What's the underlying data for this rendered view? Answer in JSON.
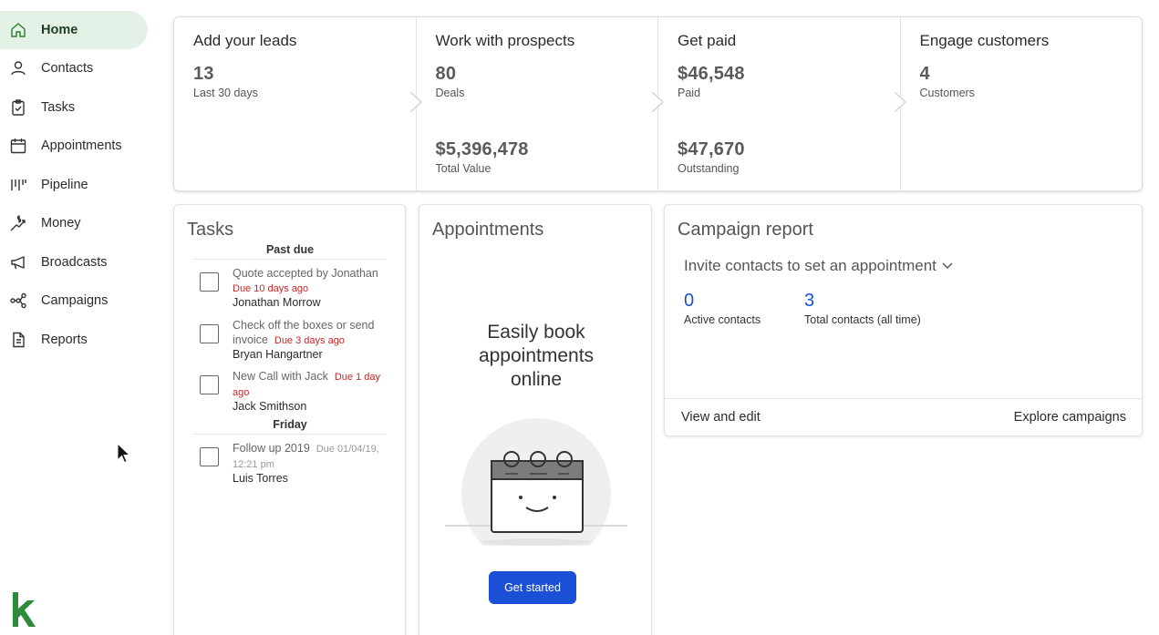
{
  "sidebar": {
    "items": [
      {
        "label": "Home",
        "icon": "home-icon",
        "active": true
      },
      {
        "label": "Contacts",
        "icon": "person-icon"
      },
      {
        "label": "Tasks",
        "icon": "clipboard-check-icon"
      },
      {
        "label": "Appointments",
        "icon": "calendar-icon"
      },
      {
        "label": "Pipeline",
        "icon": "pipeline-icon"
      },
      {
        "label": "Money",
        "icon": "money-icon"
      },
      {
        "label": "Broadcasts",
        "icon": "megaphone-icon"
      },
      {
        "label": "Campaigns",
        "icon": "campaigns-icon"
      },
      {
        "label": "Reports",
        "icon": "report-icon"
      }
    ],
    "brand_color": "#2e8b3a"
  },
  "funnel": {
    "stages": [
      {
        "title": "Add your leads",
        "stats": [
          {
            "value": "13",
            "label": "Last 30 days"
          }
        ]
      },
      {
        "title": "Work with prospects",
        "stats": [
          {
            "value": "80",
            "label": "Deals"
          },
          {
            "value": "$5,396,478",
            "label": "Total Value"
          }
        ]
      },
      {
        "title": "Get paid",
        "stats": [
          {
            "value": "$46,548",
            "label": "Paid"
          },
          {
            "value": "$47,670",
            "label": "Outstanding"
          }
        ]
      },
      {
        "title": "Engage customers",
        "stats": [
          {
            "value": "4",
            "label": "Customers"
          }
        ]
      }
    ]
  },
  "tasks": {
    "title": "Tasks",
    "sections": [
      {
        "heading": "Past due",
        "items": [
          {
            "text": "Quote accepted by Jonathan",
            "due": "Due 10 days ago",
            "contact": "Jonathan Morrow"
          },
          {
            "text": "Check off the boxes or send invoice",
            "due": "Due 3 days ago",
            "contact": "Bryan Hangartner"
          },
          {
            "text": "New Call with Jack",
            "due": "Due 1 day ago",
            "contact": "Jack Smithson"
          }
        ]
      },
      {
        "heading": "Friday",
        "items": [
          {
            "text": "Follow up 2019",
            "due": "Due 01/04/19, 12:21 pm",
            "contact": "Luis Torres"
          }
        ]
      }
    ]
  },
  "appointments": {
    "title": "Appointments",
    "line1": "Easily book",
    "line2": "appointments",
    "line3": "online",
    "button": "Get started",
    "button_color": "#1a4fd6"
  },
  "campaign": {
    "title": "Campaign report",
    "select": "Invite contacts to set an appointment",
    "metrics": [
      {
        "value": "0",
        "label": "Active contacts"
      },
      {
        "value": "3",
        "label": "Total contacts (all time)"
      }
    ],
    "view_link": "View and edit",
    "explore_link": "Explore campaigns",
    "metric_color": "#1a4fd6"
  }
}
